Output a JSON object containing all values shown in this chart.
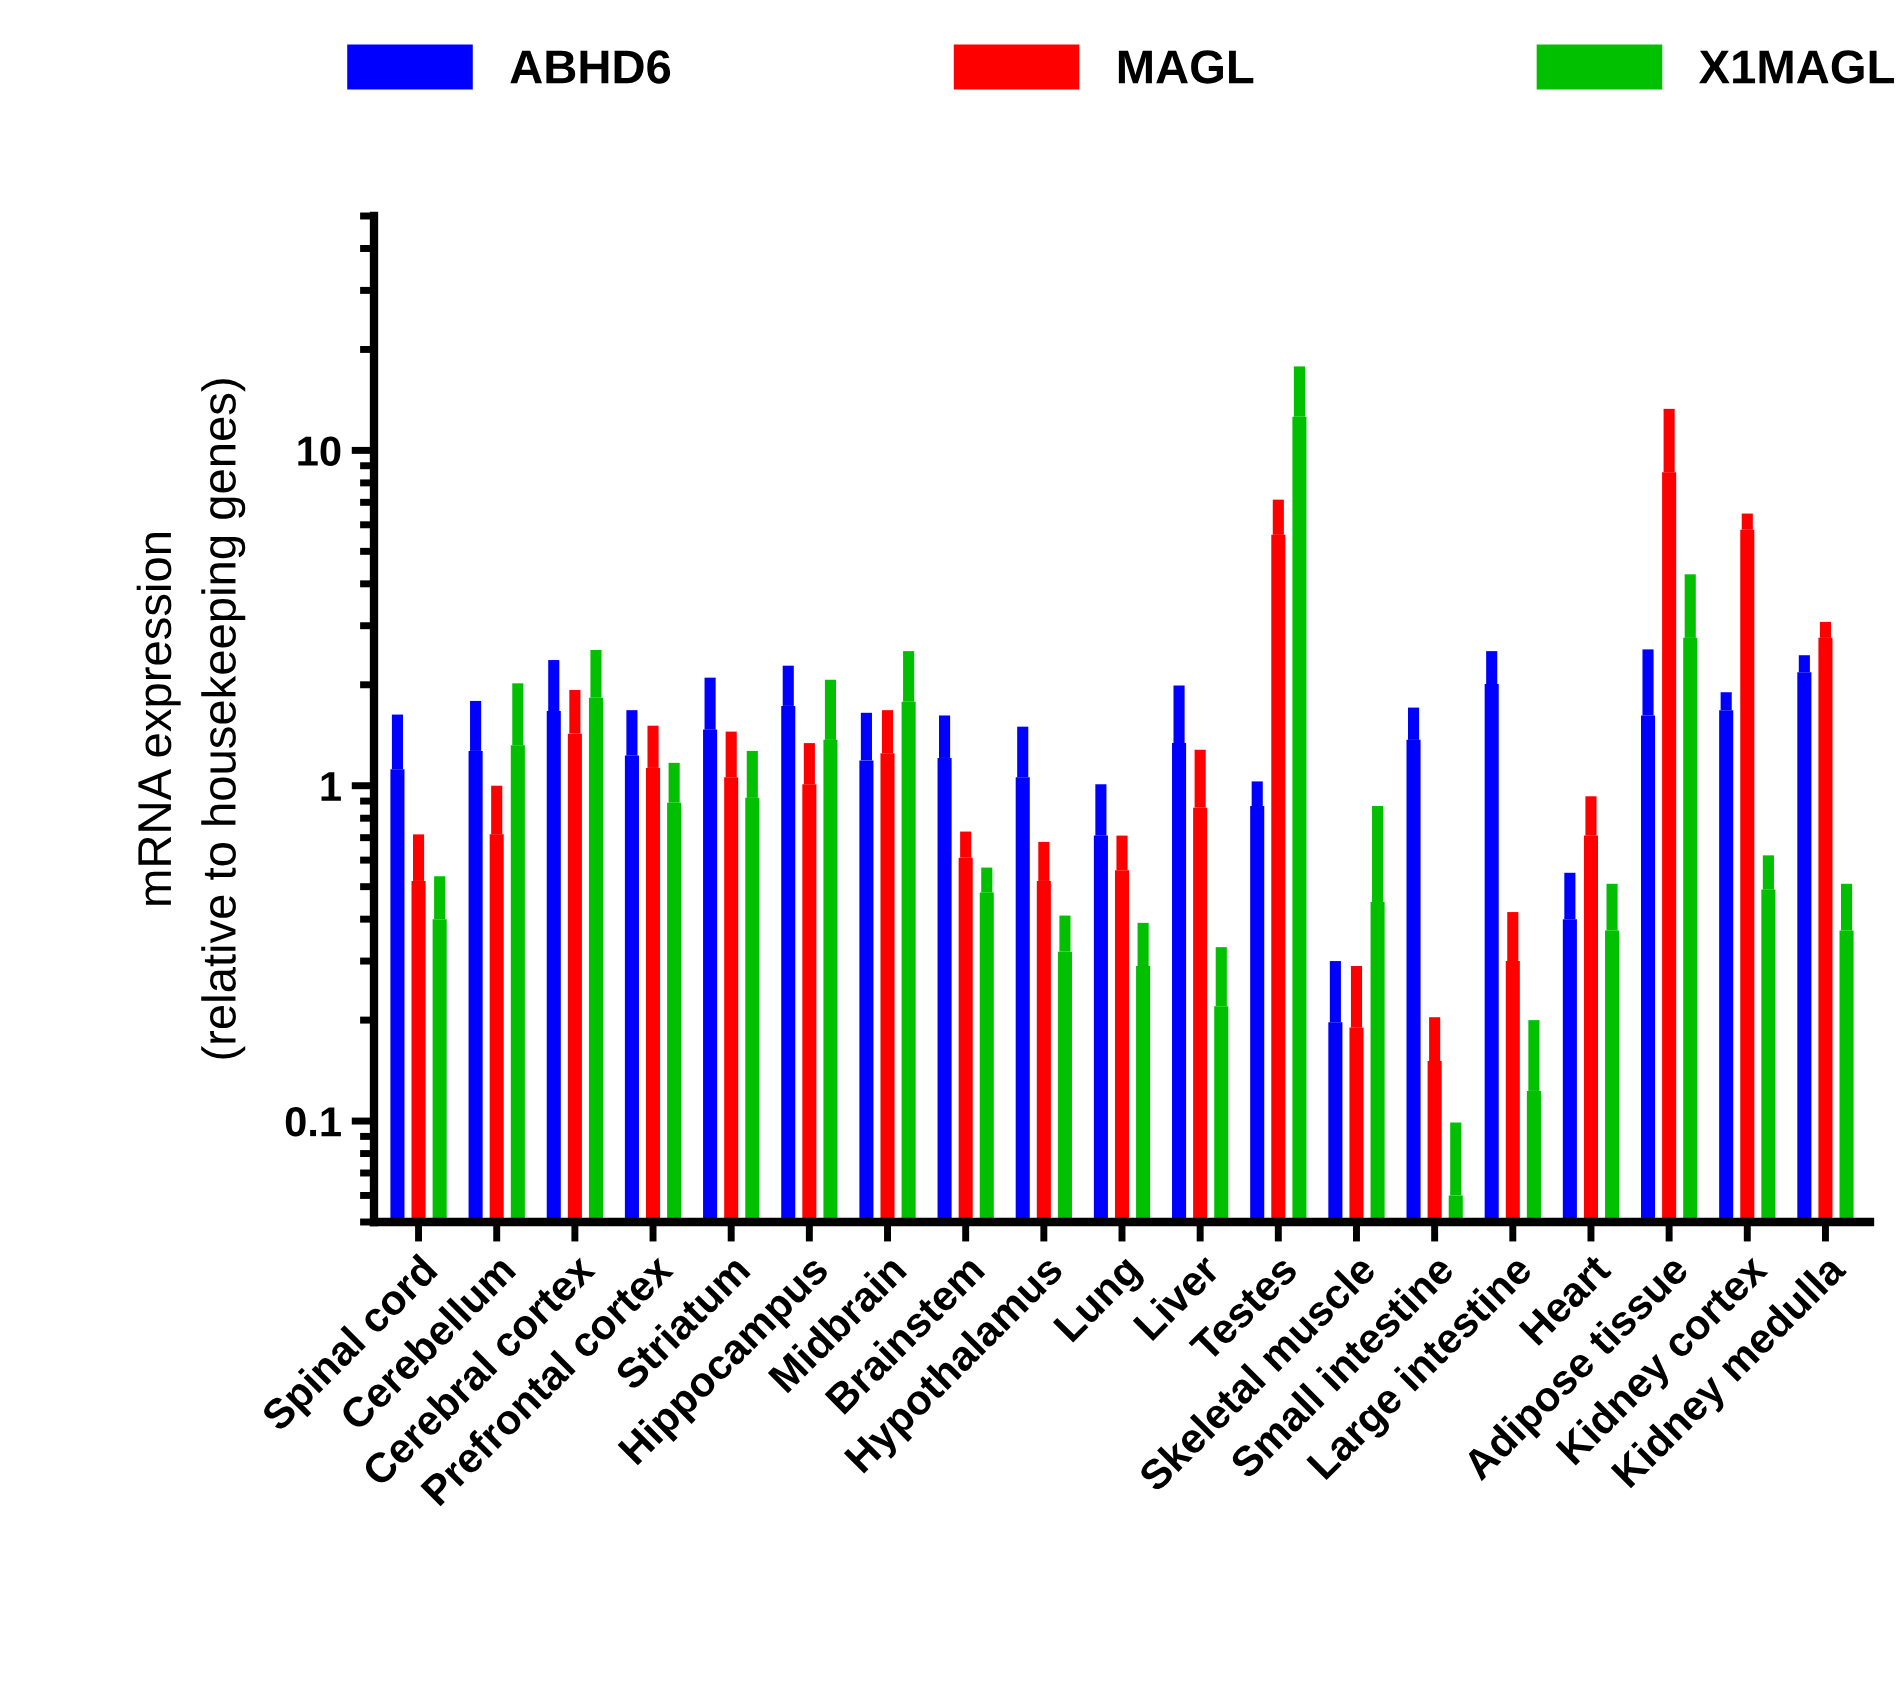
{
  "chart_data": {
    "type": "bar",
    "ylabel": "mRNA expression\n(relative to housekeeping genes)",
    "categories": [
      "Spinal cord",
      "Cerebellum",
      "Cerebral cortex",
      "Prefrontal cortex",
      "Striatum",
      "Hippocampus",
      "Midbrain",
      "Brainstem",
      "Hypothalamus",
      "Lung",
      "Liver",
      "Testes",
      "Skeletal muscle",
      "Small intestine",
      "Large intestine",
      "Heart",
      "Adipose tissue",
      "Kidney cortex",
      "Kidney medulla"
    ],
    "series": [
      {
        "name": "ABHD6",
        "color": "#0000ff",
        "values": [
          1.12,
          1.27,
          1.67,
          1.23,
          1.47,
          1.73,
          1.19,
          1.21,
          1.06,
          0.71,
          1.34,
          0.87,
          0.197,
          1.37,
          2.01,
          0.4,
          1.62,
          1.68,
          2.18
        ],
        "errors": [
          [
            1.12,
            1.63
          ],
          [
            1.27,
            1.79
          ],
          [
            1.67,
            2.37
          ],
          [
            1.23,
            1.68
          ],
          [
            1.47,
            2.1
          ],
          [
            1.73,
            2.28
          ],
          [
            1.19,
            1.65
          ],
          [
            1.21,
            1.62
          ],
          [
            1.06,
            1.5
          ],
          [
            0.71,
            1.01
          ],
          [
            1.34,
            1.99
          ],
          [
            0.87,
            1.03
          ],
          [
            0.197,
            0.3
          ],
          [
            1.37,
            1.71
          ],
          [
            2.01,
            2.52
          ],
          [
            0.4,
            0.55
          ],
          [
            1.62,
            2.55
          ],
          [
            1.68,
            1.9
          ],
          [
            2.18,
            2.45
          ]
        ]
      },
      {
        "name": "MAGL",
        "color": "#ff0000",
        "values": [
          0.52,
          0.716,
          1.43,
          1.13,
          1.06,
          1.01,
          1.25,
          0.61,
          0.52,
          0.56,
          0.86,
          5.6,
          0.19,
          0.151,
          0.3,
          0.71,
          8.6,
          5.8,
          2.76
        ],
        "errors": [
          [
            0.52,
            0.716
          ],
          [
            0.716,
            1.0
          ],
          [
            1.43,
            1.93
          ],
          [
            1.13,
            1.51
          ],
          [
            1.06,
            1.45
          ],
          [
            1.01,
            1.34
          ],
          [
            1.25,
            1.68
          ],
          [
            0.61,
            0.73
          ],
          [
            0.52,
            0.68
          ],
          [
            0.56,
            0.71
          ],
          [
            0.86,
            1.28
          ],
          [
            5.6,
            7.13
          ],
          [
            0.19,
            0.29
          ],
          [
            0.151,
            0.204
          ],
          [
            0.3,
            0.42
          ],
          [
            0.71,
            0.93
          ],
          [
            8.6,
            13.3
          ],
          [
            5.8,
            6.48
          ],
          [
            2.76,
            3.08
          ]
        ]
      },
      {
        "name": "X1MAGL",
        "color": "#00c000",
        "values": [
          0.4,
          1.32,
          1.83,
          0.89,
          0.92,
          1.37,
          1.78,
          0.48,
          0.32,
          0.29,
          0.22,
          12.6,
          0.45,
          0.06,
          0.123,
          0.37,
          2.76,
          0.49,
          0.37
        ],
        "errors": [
          [
            0.4,
            0.537
          ],
          [
            1.32,
            2.02
          ],
          [
            1.83,
            2.54
          ],
          [
            0.89,
            1.17
          ],
          [
            0.92,
            1.27
          ],
          [
            1.37,
            2.07
          ],
          [
            1.78,
            2.52
          ],
          [
            0.48,
            0.57
          ],
          [
            0.32,
            0.41
          ],
          [
            0.29,
            0.39
          ],
          [
            0.22,
            0.33
          ],
          [
            12.6,
            17.8
          ],
          [
            0.45,
            0.87
          ],
          [
            0.06,
            0.099
          ],
          [
            0.123,
            0.2
          ],
          [
            0.37,
            0.51
          ],
          [
            2.76,
            4.27
          ],
          [
            0.49,
            0.62
          ],
          [
            0.37,
            0.51
          ]
        ]
      }
    ],
    "log": "y",
    "ylim": [
      0.05,
      50
    ],
    "yticks": [
      0.1,
      1,
      10
    ],
    "grid": false,
    "legend": "top"
  }
}
